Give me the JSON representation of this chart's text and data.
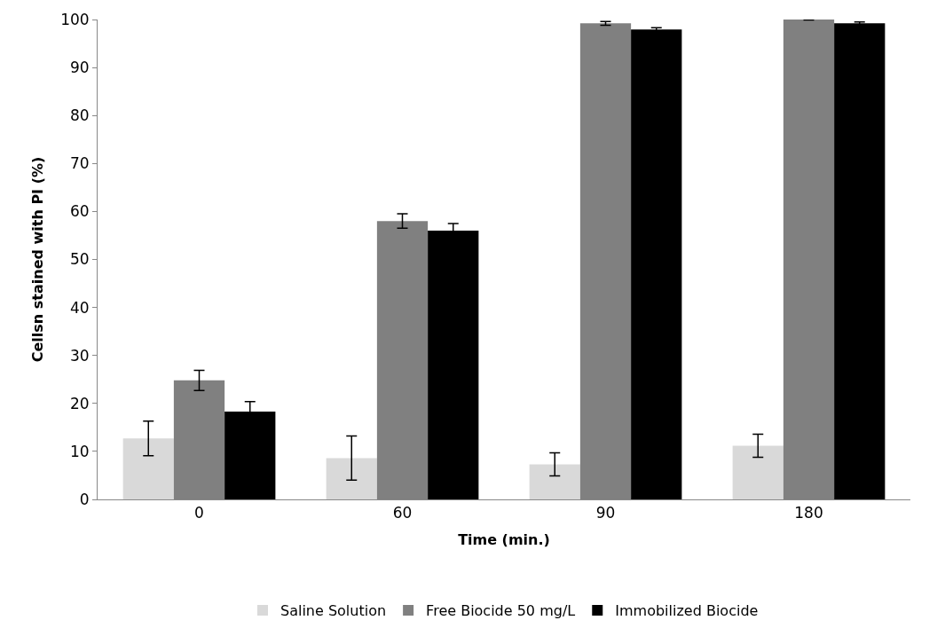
{
  "chart_data": {
    "type": "bar",
    "xlabel": "Time (min.)",
    "ylabel": "Cellsn stained with PI (%)",
    "categories": [
      "0",
      "60",
      "90",
      "180"
    ],
    "series": [
      {
        "name": "Saline Solution",
        "color": "#d9d9d9",
        "values": [
          12.7,
          8.6,
          7.3,
          11.2
        ],
        "errors": [
          3.6,
          4.6,
          2.4,
          2.4
        ]
      },
      {
        "name": "Free Biocide 50 mg/L",
        "color": "#808080",
        "values": [
          24.8,
          58,
          99.2,
          100
        ],
        "errors": [
          2.1,
          1.5,
          0.4,
          0.1
        ]
      },
      {
        "name": "Immobilized Biocide",
        "color": "#000000",
        "values": [
          18.3,
          56,
          97.9,
          99.2
        ],
        "errors": [
          2.1,
          1.5,
          0.4,
          0.3
        ]
      }
    ],
    "ylim": [
      0,
      100
    ],
    "yticks": [
      0,
      10,
      20,
      30,
      40,
      50,
      60,
      70,
      80,
      90,
      100
    ],
    "legend": "bottom"
  }
}
